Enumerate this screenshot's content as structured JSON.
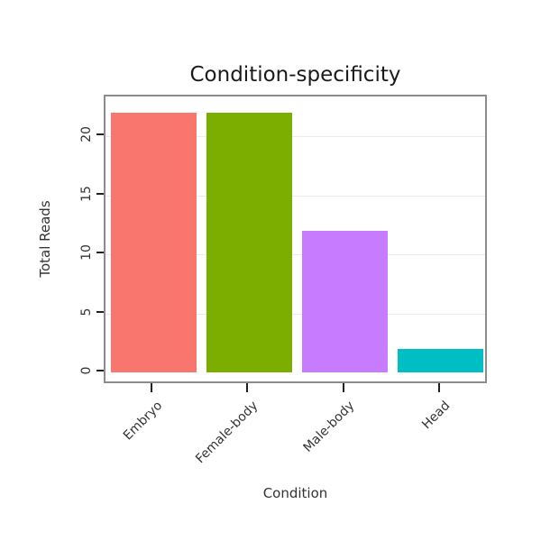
{
  "chart_data": {
    "type": "bar",
    "title": "Condition-specificity",
    "xlabel": "Condition",
    "ylabel": "Total Reads",
    "categories": [
      "Embryo",
      "Female-body",
      "Male-body",
      "Head"
    ],
    "values": [
      22,
      22,
      12,
      2
    ],
    "colors": [
      "#F8766D",
      "#7CAE00",
      "#C77CFF",
      "#00BFC4"
    ],
    "yticks": [
      0,
      5,
      10,
      15,
      20
    ],
    "ylim": [
      0,
      23.5
    ],
    "grid": "horizontal major gridlines, faint gray on white panel",
    "legend": "none",
    "panel_border_color": "#8c8c8c",
    "x_tick_label_rotation_deg": 45
  }
}
